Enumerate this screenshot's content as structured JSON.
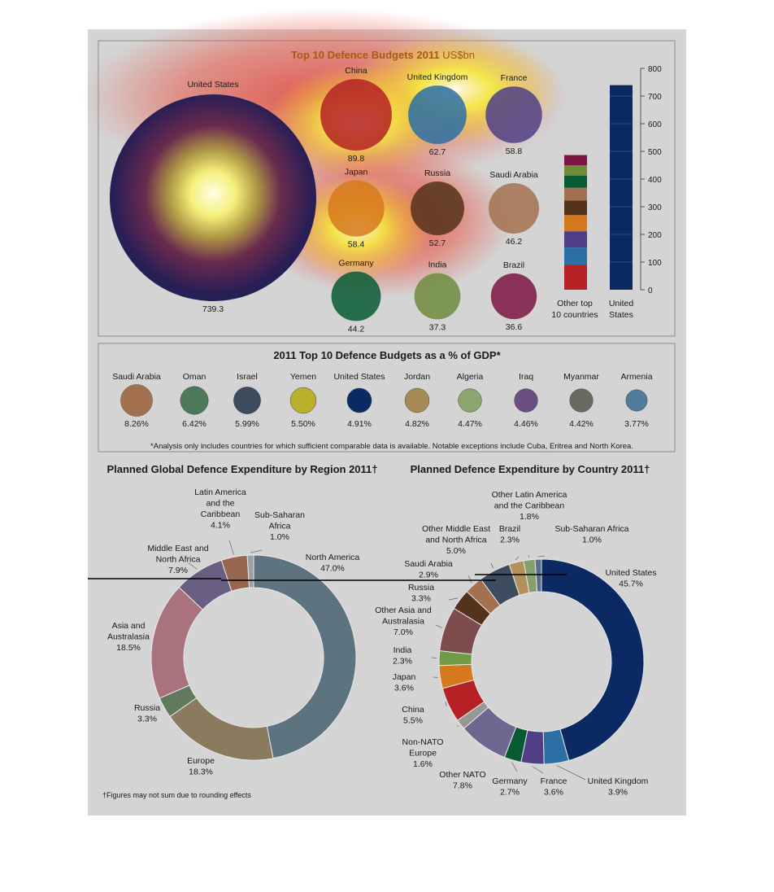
{
  "colors": {
    "page_bg": "#d4d4d4",
    "panel_border": "#8a8a8a",
    "navy": "#0b2a63",
    "heat_red": "#e0403a",
    "heat_yellow": "#f3f03a"
  },
  "chart_data": [
    {
      "type": "bubble",
      "title": "Top 10 Defence Budgets 2011",
      "unit": "US$bn",
      "bubbles": [
        {
          "name": "United States",
          "value": "739.3",
          "color": "#0b2a63"
        },
        {
          "name": "China",
          "value": "89.8",
          "color": "#b52125"
        },
        {
          "name": "United Kingdom",
          "value": "62.7",
          "color": "#2c6fa6"
        },
        {
          "name": "France",
          "value": "58.8",
          "color": "#503f86"
        },
        {
          "name": "Japan",
          "value": "58.4",
          "color": "#d6791c"
        },
        {
          "name": "Russia",
          "value": "52.7",
          "color": "#55331a"
        },
        {
          "name": "Saudi Arabia",
          "value": "46.2",
          "color": "#a3714f"
        },
        {
          "name": "Germany",
          "value": "44.2",
          "color": "#075a32"
        },
        {
          "name": "India",
          "value": "37.3",
          "color": "#6f8b3d"
        },
        {
          "name": "Brazil",
          "value": "36.6",
          "color": "#7c1444"
        }
      ]
    },
    {
      "type": "bar",
      "categories": [
        "Other top 10 countries",
        "United States"
      ],
      "category_lines": [
        [
          "Other top",
          "10 countries"
        ],
        [
          "United",
          "States"
        ]
      ],
      "values": [
        486.6,
        739.3
      ],
      "stack_colors": [
        "#b52125",
        "#2c6fa6",
        "#503f86",
        "#d6791c",
        "#55331a",
        "#a3714f",
        "#075a32",
        "#6f8b3d",
        "#7c1444"
      ],
      "ylim": [
        0,
        800
      ],
      "yticks": [
        "0",
        "100",
        "200",
        "300",
        "400",
        "500",
        "600",
        "700",
        "800"
      ],
      "grid": false
    },
    {
      "type": "bubble",
      "title": "2011 Top 10 Defence Budgets as a % of GDP*",
      "items": [
        {
          "name": "Saudi Arabia",
          "value": "8.26%",
          "color": "#a3714f"
        },
        {
          "name": "Oman",
          "value": "6.42%",
          "color": "#4e7a5c"
        },
        {
          "name": "Israel",
          "value": "5.99%",
          "color": "#3d4d5f"
        },
        {
          "name": "Yemen",
          "value": "5.50%",
          "color": "#b8b02a"
        },
        {
          "name": "United States",
          "value": "4.91%",
          "color": "#0b2a63"
        },
        {
          "name": "Jordan",
          "value": "4.82%",
          "color": "#a68a55"
        },
        {
          "name": "Algeria",
          "value": "4.47%",
          "color": "#8ba56e"
        },
        {
          "name": "Iraq",
          "value": "4.46%",
          "color": "#6b4e84"
        },
        {
          "name": "Myanmar",
          "value": "4.42%",
          "color": "#6a6a60"
        },
        {
          "name": "Armenia",
          "value": "3.77%",
          "color": "#4f7c9a"
        }
      ],
      "footnote": "*Analysis only includes countries for which sufficient comparable data is available. Notable exceptions include Cuba, Eritrea and North Korea."
    },
    {
      "type": "pie",
      "title": "Planned Global Defence Expenditure by Region 2011†",
      "slices": [
        {
          "name": "North America",
          "lines": [
            "North America"
          ],
          "value": 47.0,
          "label": "47.0%",
          "color": "#5d737f"
        },
        {
          "name": "Europe",
          "lines": [
            "Europe"
          ],
          "value": 18.3,
          "label": "18.3%",
          "color": "#8a7a5e"
        },
        {
          "name": "Russia",
          "lines": [
            "Russia"
          ],
          "value": 3.3,
          "label": "3.3%",
          "color": "#617a5d"
        },
        {
          "name": "Asia and Australasia",
          "lines": [
            "Asia and",
            "Australasia"
          ],
          "value": 18.5,
          "label": "18.5%",
          "color": "#a9727d"
        },
        {
          "name": "Middle East and North Africa",
          "lines": [
            "Middle East and",
            "North Africa"
          ],
          "value": 7.9,
          "label": "7.9%",
          "color": "#675e81"
        },
        {
          "name": "Latin America and the Caribbean",
          "lines": [
            "Latin America",
            "and the",
            "Caribbean"
          ],
          "value": 4.1,
          "label": "4.1%",
          "color": "#98654f"
        },
        {
          "name": "Sub-Saharan Africa",
          "lines": [
            "Sub-Saharan",
            "Africa"
          ],
          "value": 1.0,
          "label": "1.0%",
          "color": "#9aa0a5"
        }
      ],
      "footnote": "†Figures may not sum due to rounding effects"
    },
    {
      "type": "pie",
      "title": "Planned Defence Expenditure by Country 2011†",
      "slices": [
        {
          "name": "United States",
          "lines": [
            "United States"
          ],
          "value": 45.7,
          "label": "45.7%",
          "color": "#0b2a63"
        },
        {
          "name": "United Kingdom",
          "lines": [
            "United Kingdom"
          ],
          "value": 3.9,
          "label": "3.9%",
          "color": "#2c6fa6"
        },
        {
          "name": "France",
          "lines": [
            "France"
          ],
          "value": 3.6,
          "label": "3.6%",
          "color": "#503f86"
        },
        {
          "name": "Germany",
          "lines": [
            "Germany"
          ],
          "value": 2.7,
          "label": "2.7%",
          "color": "#075a32"
        },
        {
          "name": "Other NATO",
          "lines": [
            "Other NATO"
          ],
          "value": 7.8,
          "label": "7.8%",
          "color": "#6f6790"
        },
        {
          "name": "Non-NATO Europe",
          "lines": [
            "Non-NATO",
            "Europe"
          ],
          "value": 1.6,
          "label": "1.6%",
          "color": "#949996"
        },
        {
          "name": "China",
          "lines": [
            "China"
          ],
          "value": 5.5,
          "label": "5.5%",
          "color": "#b52125"
        },
        {
          "name": "Japan",
          "lines": [
            "Japan"
          ],
          "value": 3.6,
          "label": "3.6%",
          "color": "#d6791c"
        },
        {
          "name": "India",
          "lines": [
            "India"
          ],
          "value": 2.3,
          "label": "2.3%",
          "color": "#6f9b45"
        },
        {
          "name": "Other Asia and Australasia",
          "lines": [
            "Other Asia and",
            "Australasia"
          ],
          "value": 7.0,
          "label": "7.0%",
          "color": "#7d4c4c"
        },
        {
          "name": "Russia",
          "lines": [
            "Russia"
          ],
          "value": 3.3,
          "label": "3.3%",
          "color": "#55331a"
        },
        {
          "name": "Saudi Arabia",
          "lines": [
            "Saudi Arabia"
          ],
          "value": 2.9,
          "label": "2.9%",
          "color": "#a3714f"
        },
        {
          "name": "Other Middle East and North Africa",
          "lines": [
            "Other Middle East",
            "and North Africa"
          ],
          "value": 5.0,
          "label": "5.0%",
          "color": "#3d4d5f"
        },
        {
          "name": "Brazil",
          "lines": [
            "Brazil"
          ],
          "value": 2.3,
          "label": "2.3%",
          "color": "#b3915a"
        },
        {
          "name": "Other Latin America and the Caribbean",
          "lines": [
            "Other Latin America",
            "and the Caribbean"
          ],
          "value": 1.8,
          "label": "1.8%",
          "color": "#86a06b"
        },
        {
          "name": "Sub-Saharan Africa",
          "lines": [
            "Sub-Saharan Africa"
          ],
          "value": 1.0,
          "label": "1.0%",
          "color": "#5a6d8a"
        }
      ]
    }
  ]
}
